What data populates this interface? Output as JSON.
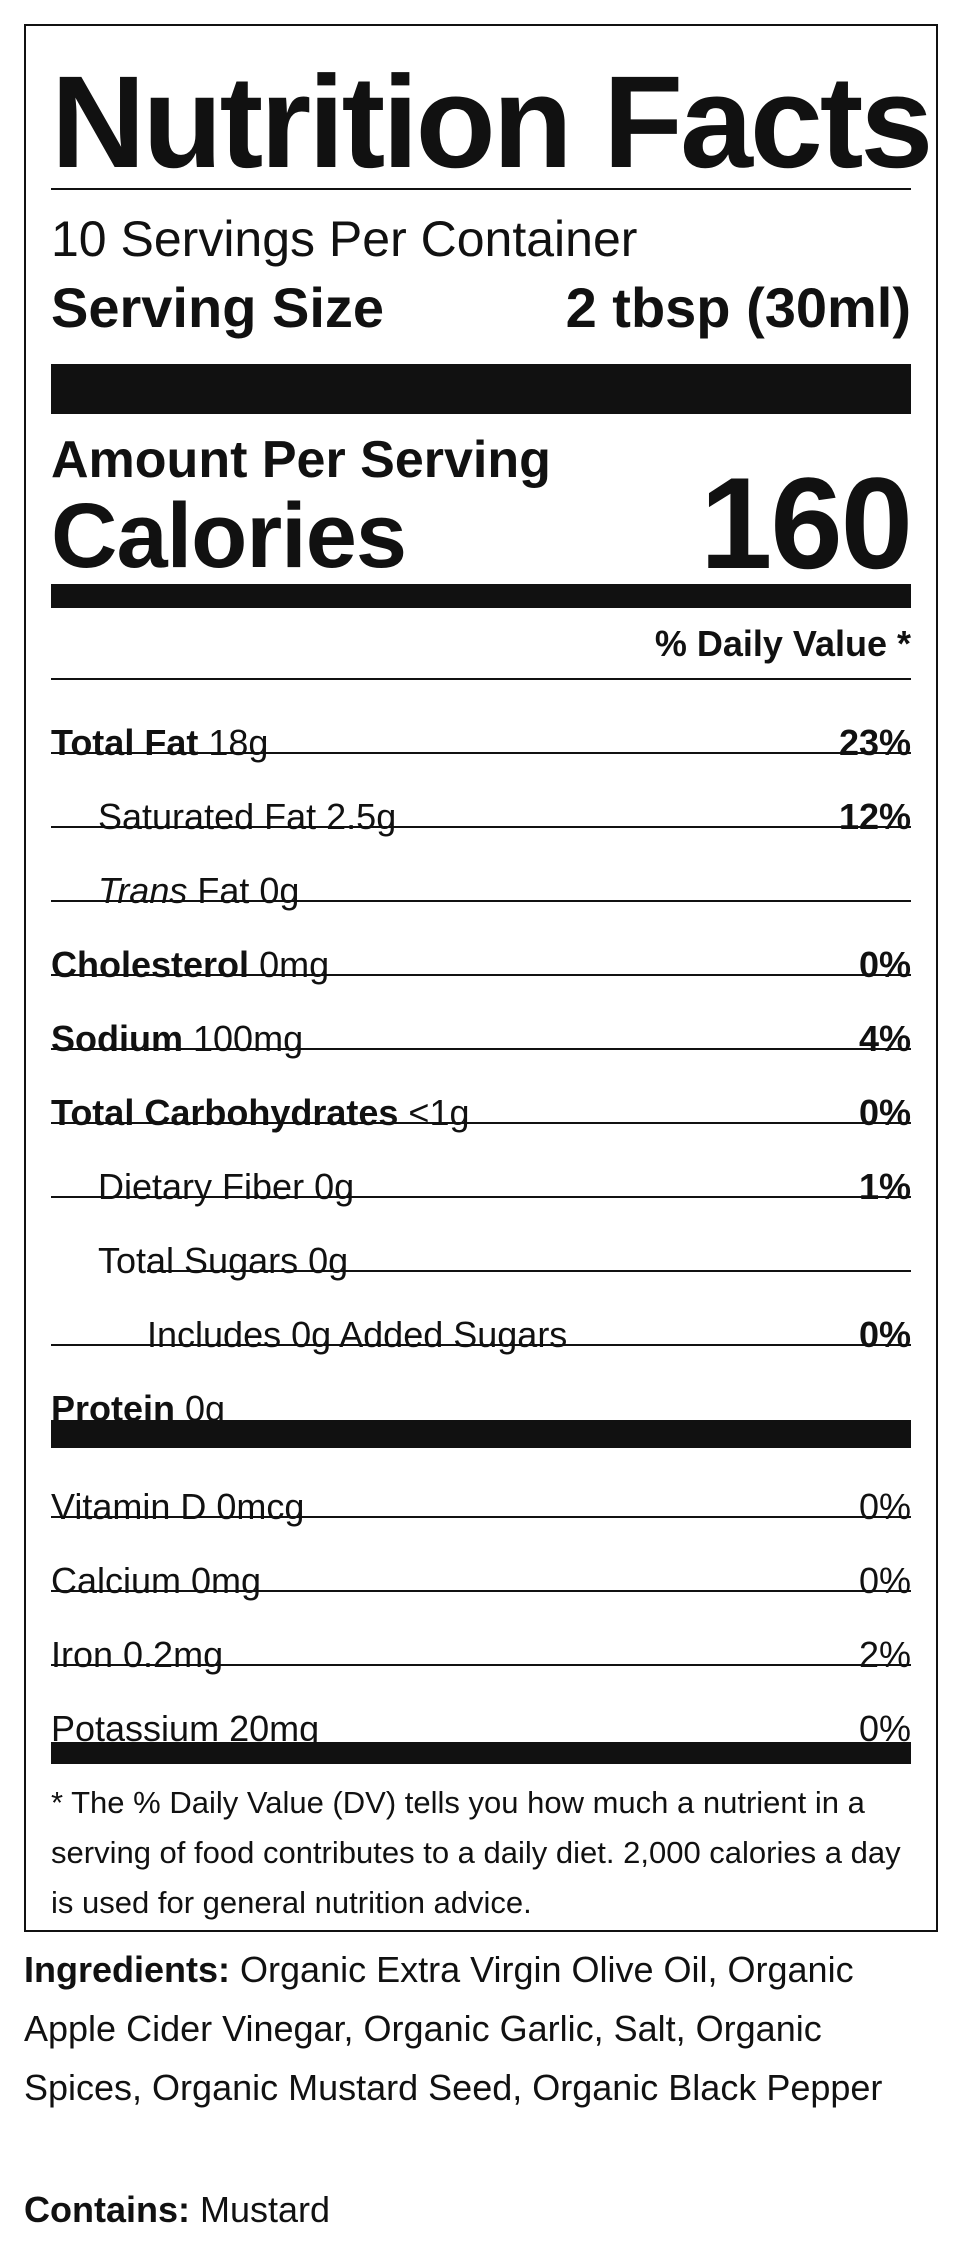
{
  "label": {
    "title": "Nutrition Facts",
    "servings_per_container": "10 Servings Per Container",
    "serving_size_label": "Serving Size",
    "serving_size_value": "2 tbsp (30ml)",
    "amount_per_serving": "Amount Per Serving",
    "calories_label": "Calories",
    "calories_value": "160",
    "daily_value_header": "% Daily Value *",
    "nutrients": [
      {
        "name": "Total Fat",
        "amount": "18g",
        "dv": "23%"
      },
      {
        "name": "Saturated Fat",
        "amount": "2.5g",
        "dv": "12%"
      },
      {
        "name_italic": "Trans",
        "name": "Fat",
        "amount": "0g",
        "dv": ""
      },
      {
        "name": "Cholesterol",
        "amount": "0mg",
        "dv": "0%"
      },
      {
        "name": "Sodium",
        "amount": "100mg",
        "dv": "4%"
      },
      {
        "name": "Total Carbohydrates",
        "amount": "<1g",
        "dv": "0%"
      },
      {
        "name": "Dietary Fiber",
        "amount": "0g",
        "dv": "1%"
      },
      {
        "name": "Total Sugars",
        "amount": "0g",
        "dv": ""
      },
      {
        "name": "Includes 0g Added Sugars",
        "dv": "0%"
      },
      {
        "name": "Protein",
        "amount": "0g",
        "dv": ""
      }
    ],
    "vitamins": [
      {
        "text": "Vitamin D 0mcg",
        "dv": "0%"
      },
      {
        "text": "Calcium 0mg",
        "dv": "0%"
      },
      {
        "text": "Iron 0.2mg",
        "dv": "2%"
      },
      {
        "text": "Potassium 20mg",
        "dv": "0%"
      }
    ],
    "footnote": "* The % Daily Value (DV) tells you how much a nutrient in a serving of food contributes to a daily diet. 2,000 calories a day is used for general nutrition advice."
  },
  "ingredients": {
    "label": "Ingredients:",
    "text": "Organic Extra Virgin Olive Oil, Organic Apple Cider Vinegar, Organic Garlic, Salt, Organic Spices, Organic Mustard Seed, Organic Black Pepper"
  },
  "contains": {
    "label": "Contains:",
    "text": "Mustard"
  }
}
